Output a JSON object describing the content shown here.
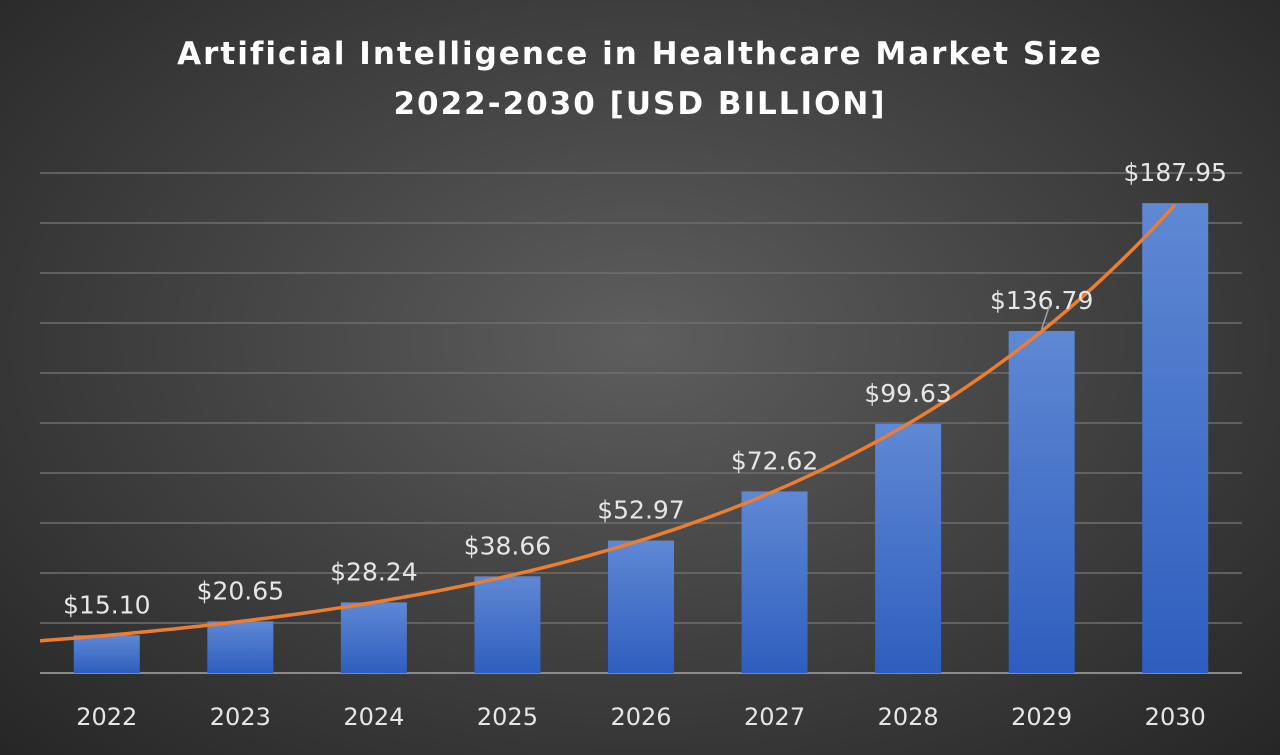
{
  "chart_data": {
    "type": "bar",
    "title": "Artificial Intelligence in Healthcare Market Size",
    "subtitle": "2022-2030 [USD BILLION]",
    "xlabel": "",
    "ylabel": "",
    "categories": [
      "2022",
      "2023",
      "2024",
      "2025",
      "2026",
      "2027",
      "2028",
      "2029",
      "2030"
    ],
    "values": [
      15.1,
      20.65,
      28.24,
      38.66,
      52.97,
      72.62,
      99.63,
      136.79,
      187.95
    ],
    "data_labels": [
      "$15.10",
      "$20.65",
      "$28.24",
      "$38.66",
      "$52.97",
      "$72.62",
      "$99.63",
      "$136.79",
      "$187.95"
    ],
    "ylim": [
      0,
      200
    ],
    "gridline_step": 20,
    "grid": true,
    "y_axis_labels_shown": false,
    "legend": "none",
    "trendline": {
      "type": "exponential",
      "color": "#ED7D31"
    },
    "colors": {
      "bar_top": "#5F88D4",
      "bar_bottom": "#2E5EBE",
      "trendline": "#ED7D31",
      "gridline": "#6E6E6E",
      "text": "#E6E6E6"
    }
  }
}
